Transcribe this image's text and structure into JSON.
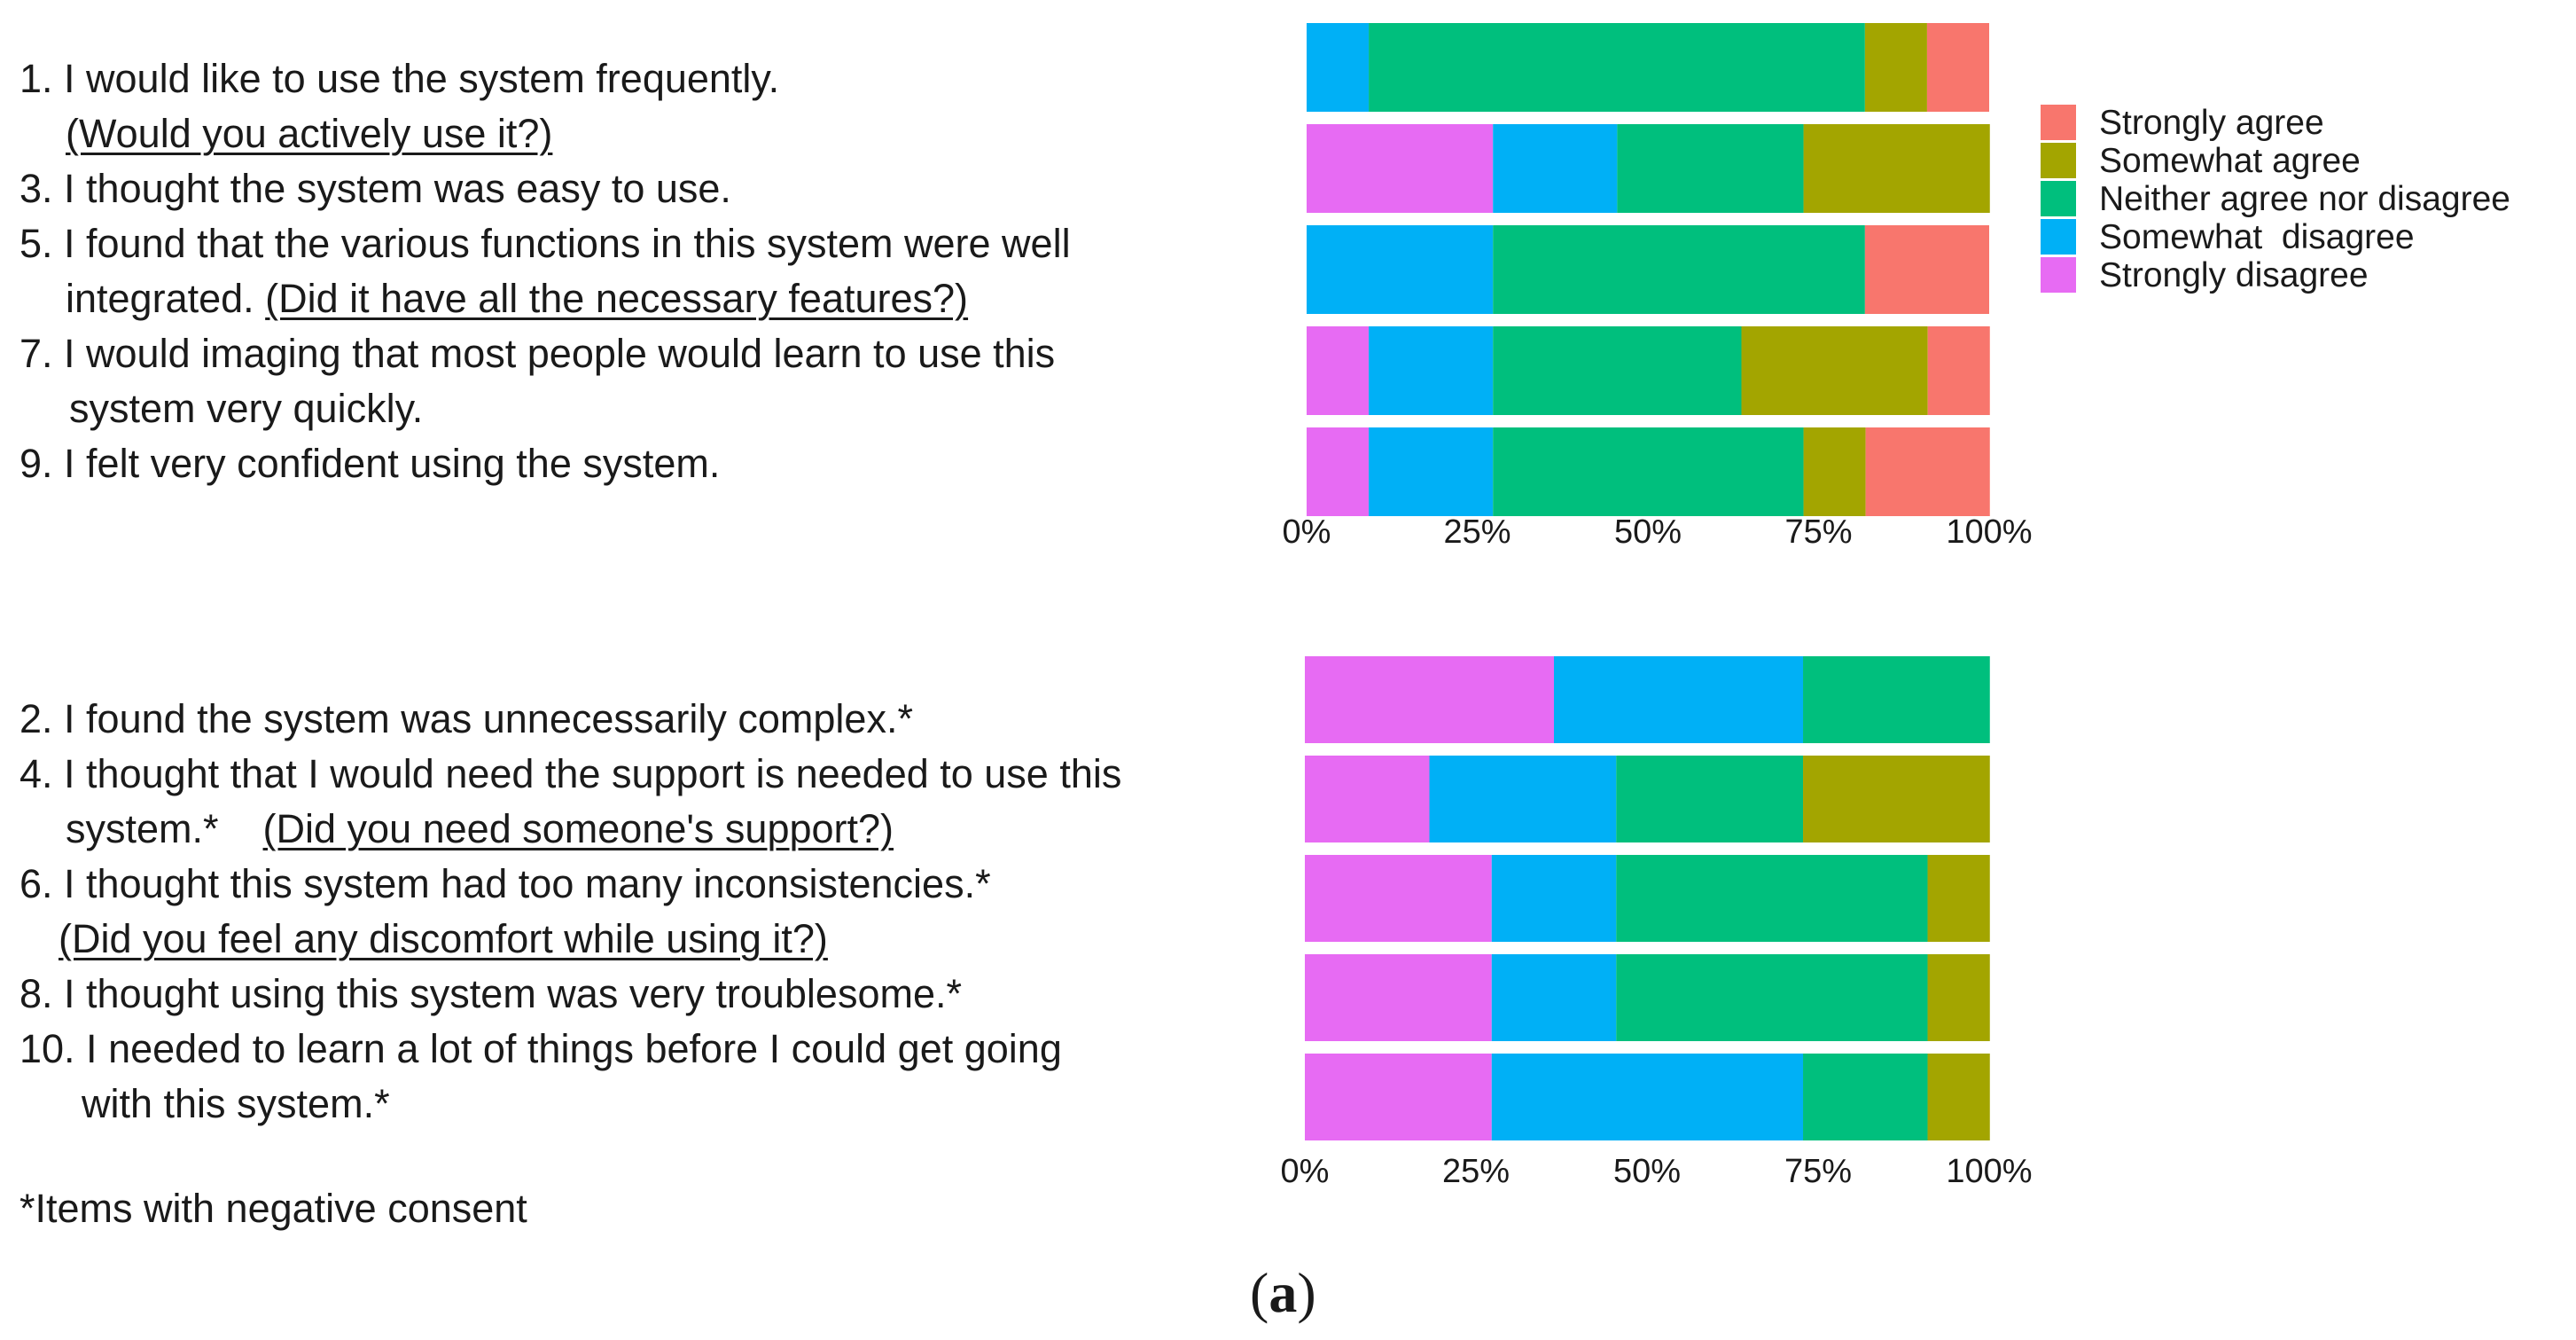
{
  "positive_questions": [
    {
      "id": "q1",
      "parts": [
        {
          "text": "1. I would like to use the system frequently.",
          "underline": false
        }
      ]
    },
    {
      "id": "q1b",
      "parts": [
        {
          "text": "(Would you actively use it?)",
          "underline": true
        }
      ]
    },
    {
      "id": "q3",
      "parts": [
        {
          "text": "3. I thought the system was easy to use.",
          "underline": false
        }
      ]
    },
    {
      "id": "q5",
      "parts": [
        {
          "text": "5. I found that the various functions in this system were well",
          "underline": false
        }
      ]
    },
    {
      "id": "q5b",
      "parts": [
        {
          "text": "integrated. ",
          "underline": false
        },
        {
          "text": "(Did it have all the necessary features?)",
          "underline": true
        }
      ]
    },
    {
      "id": "q7",
      "parts": [
        {
          "text": "7. I would imaging that most people would learn to use this",
          "underline": false
        }
      ]
    },
    {
      "id": "q7b",
      "parts": [
        {
          "text": "system very quickly.",
          "underline": false
        }
      ]
    },
    {
      "id": "q9",
      "parts": [
        {
          "text": "9. I felt very confident using the system.",
          "underline": false
        }
      ]
    }
  ],
  "negative_questions": [
    {
      "id": "q2",
      "parts": [
        {
          "text": "2. I found the system was unnecessarily complex.*",
          "underline": false
        }
      ]
    },
    {
      "id": "q4",
      "parts": [
        {
          "text": "4. I thought that I would need the support is needed to use this",
          "underline": false
        }
      ]
    },
    {
      "id": "q4b",
      "parts": [
        {
          "text": "system.*    ",
          "underline": false
        },
        {
          "text": "(Did you need someone's support?)",
          "underline": true
        }
      ]
    },
    {
      "id": "q6",
      "parts": [
        {
          "text": "6. I thought this system had too many inconsistencies.*",
          "underline": false
        }
      ]
    },
    {
      "id": "q6b",
      "parts": [
        {
          "text": "(Did you feel any discomfort while using it?)",
          "underline": true
        }
      ]
    },
    {
      "id": "q8",
      "parts": [
        {
          "text": "8. I thought using this system was very troublesome.*",
          "underline": false
        }
      ]
    },
    {
      "id": "q10",
      "parts": [
        {
          "text": "10. I needed to learn a lot of things before I could get going",
          "underline": false
        }
      ]
    },
    {
      "id": "q10b",
      "parts": [
        {
          "text": "with this system.*",
          "underline": false
        }
      ]
    }
  ],
  "footnote": "*Items with negative consent",
  "caption": {
    "open": "(",
    "letter": "a",
    "close": ")"
  },
  "colors": {
    "strongly_agree": "#F8766D",
    "somewhat_agree": "#A3A500",
    "neither": "#00BF7D",
    "somewhat_disagree": "#00B0F6",
    "strongly_disagree": "#E76BF3"
  },
  "chart_data": [
    {
      "type": "bar",
      "orientation": "horizontal",
      "stacked": true,
      "percent": true,
      "categories": [
        "1",
        "3",
        "5",
        "7",
        "9"
      ],
      "xlim": [
        0,
        100
      ],
      "xticks": [
        "0%",
        "25%",
        "50%",
        "75%",
        "100%"
      ],
      "series": [
        {
          "name": "Strongly disagree",
          "color_key": "strongly_disagree",
          "values": [
            0,
            27.3,
            0,
            9.1,
            9.1
          ]
        },
        {
          "name": "Somewhat  disagree",
          "color_key": "somewhat_disagree",
          "values": [
            9.1,
            18.2,
            27.3,
            18.2,
            18.2
          ]
        },
        {
          "name": "Neither agree nor disagree",
          "color_key": "neither",
          "values": [
            72.7,
            27.3,
            54.5,
            36.4,
            45.5
          ]
        },
        {
          "name": "Somewhat agree",
          "color_key": "somewhat_agree",
          "values": [
            9.1,
            27.3,
            0,
            27.3,
            9.1
          ]
        },
        {
          "name": "Strongly agree",
          "color_key": "strongly_agree",
          "values": [
            9.1,
            0,
            18.2,
            9.1,
            18.2
          ]
        }
      ],
      "legend": {
        "position": "right",
        "entries": [
          {
            "label": "Strongly agree",
            "color_key": "strongly_agree"
          },
          {
            "label": "Somewhat agree",
            "color_key": "somewhat_agree"
          },
          {
            "label": "Neither agree nor disagree",
            "color_key": "neither"
          },
          {
            "label": "Somewhat  disagree",
            "color_key": "somewhat_disagree"
          },
          {
            "label": "Strongly disagree",
            "color_key": "strongly_disagree"
          }
        ]
      }
    },
    {
      "type": "bar",
      "orientation": "horizontal",
      "stacked": true,
      "percent": true,
      "categories": [
        "2",
        "4",
        "6",
        "8",
        "10"
      ],
      "xlim": [
        0,
        100
      ],
      "xticks": [
        "0%",
        "25%",
        "50%",
        "75%",
        "100%"
      ],
      "series": [
        {
          "name": "Strongly disagree",
          "color_key": "strongly_disagree",
          "values": [
            36.4,
            18.2,
            27.3,
            27.3,
            27.3
          ]
        },
        {
          "name": "Somewhat  disagree",
          "color_key": "somewhat_disagree",
          "values": [
            36.4,
            27.3,
            18.2,
            18.2,
            45.5
          ]
        },
        {
          "name": "Neither agree nor disagree",
          "color_key": "neither",
          "values": [
            27.3,
            27.3,
            45.5,
            45.5,
            18.2
          ]
        },
        {
          "name": "Somewhat agree",
          "color_key": "somewhat_agree",
          "values": [
            0,
            27.3,
            9.1,
            9.1,
            9.1
          ]
        },
        {
          "name": "Strongly agree",
          "color_key": "strongly_agree",
          "values": [
            0,
            0,
            0,
            0,
            0
          ]
        }
      ]
    }
  ]
}
